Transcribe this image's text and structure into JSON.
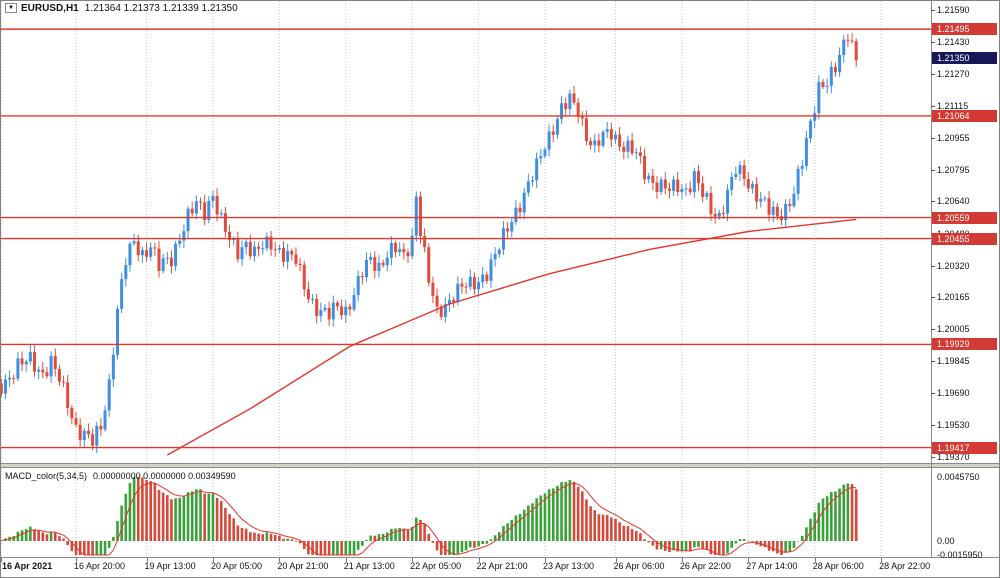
{
  "header": {
    "symbol": "EURUSD,H1",
    "ohlc": "1.21364 1.21373 1.21339 1.21350"
  },
  "macd_header": {
    "name": "MACD_color(5,34,5)",
    "values": "0.00000000 0.0000000 0.00349590"
  },
  "price_axis": {
    "labels": [
      "1.21590",
      "1.21430",
      "1.21270",
      "1.21115",
      "1.20955",
      "1.20795",
      "1.20640",
      "1.20480",
      "1.20320",
      "1.20165",
      "1.20005",
      "1.19845",
      "1.19690",
      "1.19530",
      "1.19370"
    ]
  },
  "macd_axis": {
    "labels": [
      "0.0045750",
      "0.00",
      "-0.0015950"
    ]
  },
  "time_axis": {
    "ticks": [
      {
        "i": 2,
        "label": "16 Apr 2021",
        "bold": true
      },
      {
        "i": 20,
        "label": "16 Apr 20:00"
      },
      {
        "i": 37,
        "label": "19 Apr 13:00"
      },
      {
        "i": 53,
        "label": "20 Apr 05:00"
      },
      {
        "i": 69,
        "label": "20 Apr 21:00"
      },
      {
        "i": 85,
        "label": "21 Apr 13:00"
      },
      {
        "i": 101,
        "label": "22 Apr 05:00"
      },
      {
        "i": 117,
        "label": "22 Apr 21:00"
      },
      {
        "i": 133,
        "label": "23 Apr 13:00"
      },
      {
        "i": 150,
        "label": "26 Apr 06:00"
      },
      {
        "i": 166,
        "label": "26 Apr 22:00"
      },
      {
        "i": 182,
        "label": "27 Apr 14:00"
      },
      {
        "i": 198,
        "label": "28 Apr 06:00"
      },
      {
        "i": 214,
        "label": "28 Apr 22:00"
      }
    ]
  },
  "price_lines": [
    {
      "price": 1.21495,
      "label": "1.21495"
    },
    {
      "price": 1.21064,
      "label": "1.21064"
    },
    {
      "price": 1.20559,
      "label": "1.20559"
    },
    {
      "price": 1.20455,
      "label": "1.20455"
    },
    {
      "price": 1.19929,
      "label": "1.19929"
    },
    {
      "price": 1.19417,
      "label": "1.19417"
    }
  ],
  "current_price": {
    "price": 1.2135,
    "label": "1.21350"
  },
  "chart_data": {
    "type": "candlestick",
    "symbol": "EURUSD",
    "timeframe": "H1",
    "title": "EURUSD,H1",
    "ohlc_display": {
      "open": "1.21364",
      "high": "1.21373",
      "low": "1.21339",
      "close": "1.21350"
    },
    "x_range_labels": [
      "16 Apr 2021",
      "28 Apr 22:00"
    ],
    "y_range": [
      1.1937,
      1.2159
    ],
    "candle_count": 209,
    "close_anchors": [
      [
        0,
        1.1968
      ],
      [
        3,
        1.1975
      ],
      [
        6,
        1.1982
      ],
      [
        9,
        1.1985
      ],
      [
        12,
        1.1979
      ],
      [
        14,
        1.1984
      ],
      [
        16,
        1.1975
      ],
      [
        18,
        1.1964
      ],
      [
        20,
        1.1952
      ],
      [
        22,
        1.1948
      ],
      [
        24,
        1.1944
      ],
      [
        26,
        1.1952
      ],
      [
        28,
        1.1974
      ],
      [
        30,
        1.201
      ],
      [
        32,
        1.2034
      ],
      [
        34,
        1.2044
      ],
      [
        36,
        1.2038
      ],
      [
        38,
        1.2042
      ],
      [
        40,
        1.2031
      ],
      [
        43,
        1.2036
      ],
      [
        45,
        1.2047
      ],
      [
        47,
        1.2056
      ],
      [
        49,
        1.2062
      ],
      [
        51,
        1.2059
      ],
      [
        53,
        1.2068
      ],
      [
        55,
        1.2054
      ],
      [
        57,
        1.2044
      ],
      [
        59,
        1.2039
      ],
      [
        61,
        1.2044
      ],
      [
        63,
        1.2038
      ],
      [
        65,
        1.2041
      ],
      [
        67,
        1.2043
      ],
      [
        69,
        1.204
      ],
      [
        71,
        1.2037
      ],
      [
        73,
        1.2034
      ],
      [
        75,
        1.2022
      ],
      [
        77,
        1.2014
      ],
      [
        79,
        1.2009
      ],
      [
        81,
        1.2007
      ],
      [
        83,
        1.2012
      ],
      [
        85,
        1.201
      ],
      [
        87,
        1.2018
      ],
      [
        89,
        1.2028
      ],
      [
        91,
        1.2035
      ],
      [
        93,
        1.2032
      ],
      [
        95,
        1.2038
      ],
      [
        97,
        1.204
      ],
      [
        99,
        1.2036
      ],
      [
        101,
        1.2046
      ],
      [
        102,
        1.2068
      ],
      [
        103,
        1.205
      ],
      [
        105,
        1.2024
      ],
      [
        107,
        1.2008
      ],
      [
        109,
        1.2013
      ],
      [
        111,
        1.2018
      ],
      [
        113,
        1.2021
      ],
      [
        115,
        1.2022
      ],
      [
        117,
        1.2025
      ],
      [
        119,
        1.2029
      ],
      [
        121,
        1.2036
      ],
      [
        123,
        1.2046
      ],
      [
        125,
        1.2056
      ],
      [
        127,
        1.2063
      ],
      [
        129,
        1.2071
      ],
      [
        131,
        1.2081
      ],
      [
        133,
        1.2093
      ],
      [
        135,
        1.2101
      ],
      [
        137,
        1.2109
      ],
      [
        139,
        1.2114
      ],
      [
        141,
        1.211
      ],
      [
        143,
        1.2097
      ],
      [
        145,
        1.209
      ],
      [
        147,
        1.2096
      ],
      [
        149,
        1.2099
      ],
      [
        151,
        1.2093
      ],
      [
        153,
        1.209
      ],
      [
        155,
        1.2087
      ],
      [
        157,
        1.2079
      ],
      [
        159,
        1.2074
      ],
      [
        161,
        1.2071
      ],
      [
        163,
        1.2069
      ],
      [
        165,
        1.2072
      ],
      [
        167,
        1.207
      ],
      [
        169,
        1.2076
      ],
      [
        171,
        1.2067
      ],
      [
        173,
        1.206
      ],
      [
        175,
        1.2057
      ],
      [
        177,
        1.2068
      ],
      [
        179,
        1.2079
      ],
      [
        181,
        1.2076
      ],
      [
        183,
        1.2071
      ],
      [
        185,
        1.2065
      ],
      [
        187,
        1.2059
      ],
      [
        189,
        1.2056
      ],
      [
        191,
        1.2061
      ],
      [
        193,
        1.2069
      ],
      [
        195,
        1.2083
      ],
      [
        197,
        1.2102
      ],
      [
        199,
        1.2122
      ],
      [
        201,
        1.2124
      ],
      [
        203,
        1.2129
      ],
      [
        205,
        1.2141
      ],
      [
        206,
        1.2148
      ],
      [
        207,
        1.2143
      ],
      [
        208,
        1.2135
      ]
    ],
    "ma_line_anchors": [
      [
        42,
        1.1938
      ],
      [
        62,
        1.1961
      ],
      [
        86,
        1.1992
      ],
      [
        110,
        1.2013
      ],
      [
        134,
        1.2028
      ],
      [
        158,
        1.204
      ],
      [
        182,
        1.2049
      ],
      [
        208,
        1.2055
      ]
    ],
    "indicator": {
      "name": "MACD_color",
      "params": [
        5,
        34,
        5
      ],
      "current_value": "0.00349590",
      "axis_max": "0.0045750",
      "axis_zero": "0.00",
      "axis_min": "-0.0015950"
    }
  },
  "colors": {
    "candle_up": "#3f8ee0",
    "candle_down": "#e04b3a",
    "line_red": "#e3362a",
    "ma_red": "#e3362a",
    "badge_red": "#d43a34",
    "badge_dark": "#17175a",
    "macd_green": "#3aa13a",
    "macd_red": "#d4493a",
    "signal_red": "#e3362a",
    "grid": "#c9c9c9",
    "background": "#ffffff"
  }
}
